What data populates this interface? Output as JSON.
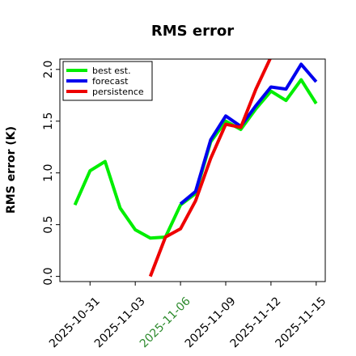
{
  "chart_data": {
    "type": "line",
    "title": "RMS error",
    "ylabel": "RMS error (K)",
    "xlabel": "",
    "xlim": [
      "2025-10-29",
      "2025-11-15.6"
    ],
    "ylim": [
      -0.05,
      2.1
    ],
    "yticks": [
      "0.0",
      "0.5",
      "1.0",
      "1.5",
      "2.0"
    ],
    "xticks": [
      {
        "date": "2025-10-31",
        "label": "2025-10-31",
        "color": "#000000"
      },
      {
        "date": "2025-11-03",
        "label": "2025-11-03",
        "color": "#000000"
      },
      {
        "date": "2025-11-06",
        "label": "2025-11-06",
        "color": "#2e8b2e"
      },
      {
        "date": "2025-11-09",
        "label": "2025-11-09",
        "color": "#000000"
      },
      {
        "date": "2025-11-12",
        "label": "2025-11-12",
        "color": "#000000"
      },
      {
        "date": "2025-11-15",
        "label": "2025-11-15",
        "color": "#000000"
      }
    ],
    "legend_position": "top-left",
    "grid": false,
    "series": [
      {
        "name": "best est.",
        "color": "#00ee00",
        "x": [
          "2025-10-30",
          "2025-10-31",
          "2025-11-01",
          "2025-11-02",
          "2025-11-03",
          "2025-11-04",
          "2025-11-05",
          "2025-11-06",
          "2025-11-07",
          "2025-11-08",
          "2025-11-09",
          "2025-11-10",
          "2025-11-11",
          "2025-11-12",
          "2025-11-13",
          "2025-11-14",
          "2025-11-15"
        ],
        "values": [
          0.69,
          1.02,
          1.11,
          0.66,
          0.45,
          0.37,
          0.38,
          0.69,
          0.8,
          1.3,
          1.5,
          1.42,
          1.62,
          1.79,
          1.7,
          1.9,
          1.67
        ]
      },
      {
        "name": "forecast",
        "color": "#0000ee",
        "x": [
          "2025-11-06",
          "2025-11-07",
          "2025-11-08",
          "2025-11-09",
          "2025-11-10",
          "2025-11-11",
          "2025-11-12",
          "2025-11-13",
          "2025-11-14",
          "2025-11-15"
        ],
        "values": [
          0.7,
          0.82,
          1.32,
          1.55,
          1.45,
          1.65,
          1.83,
          1.81,
          2.05,
          1.88
        ]
      },
      {
        "name": "persistence",
        "color": "#ee0000",
        "x": [
          "2025-11-04",
          "2025-11-05",
          "2025-11-06",
          "2025-11-07",
          "2025-11-08",
          "2025-11-09",
          "2025-11-10",
          "2025-11-11",
          "2025-11-12"
        ],
        "values": [
          0.0,
          0.38,
          0.46,
          0.73,
          1.14,
          1.47,
          1.44,
          1.81,
          2.12
        ]
      }
    ]
  }
}
